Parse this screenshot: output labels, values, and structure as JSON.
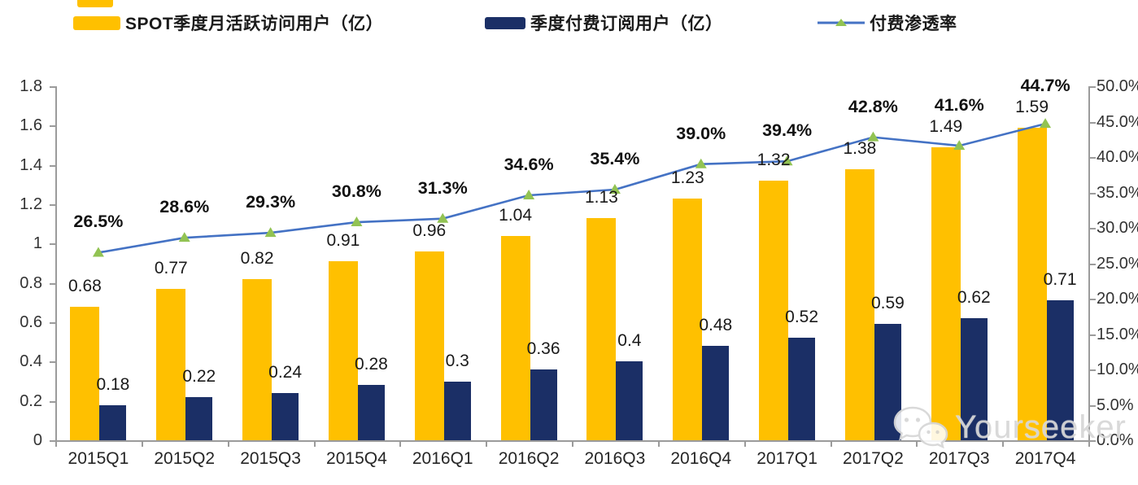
{
  "legend": {
    "items": [
      {
        "label": "SPOT季度月活跃访问用户（亿）",
        "color": "#FFC000",
        "swatch_type": "bar"
      },
      {
        "label": "季度付费订阅用户（亿）",
        "color": "#1B2F66",
        "swatch_type": "bar"
      },
      {
        "label": "付费渗透率",
        "color": "#4472C4",
        "marker_color": "#92C353",
        "swatch_type": "line-triangle"
      }
    ]
  },
  "chart_data": {
    "type": "combo-bar-line",
    "categories": [
      "2015Q1",
      "2015Q2",
      "2015Q3",
      "2015Q4",
      "2016Q1",
      "2016Q2",
      "2016Q3",
      "2016Q4",
      "2017Q1",
      "2017Q2",
      "2017Q3",
      "2017Q4"
    ],
    "series": [
      {
        "name": "SPOT季度月活跃访问用户（亿）",
        "type": "bar",
        "axis": "left",
        "color": "#FFC000",
        "values": [
          0.68,
          0.77,
          0.82,
          0.91,
          0.96,
          1.04,
          1.13,
          1.23,
          1.32,
          1.38,
          1.49,
          1.59
        ],
        "labels": [
          "0.68",
          "0.77",
          "0.82",
          "0.91",
          "0.96",
          "1.04",
          "1.13",
          "1.23",
          "1.32",
          "1.38",
          "1.49",
          "1.59"
        ]
      },
      {
        "name": "季度付费订阅用户（亿）",
        "type": "bar",
        "axis": "left",
        "color": "#1B2F66",
        "values": [
          0.18,
          0.22,
          0.24,
          0.28,
          0.3,
          0.36,
          0.4,
          0.48,
          0.52,
          0.59,
          0.62,
          0.71
        ],
        "labels": [
          "0.18",
          "0.22",
          "0.24",
          "0.28",
          "0.3",
          "0.36",
          "0.4",
          "0.48",
          "0.52",
          "0.59",
          "0.62",
          "0.71"
        ]
      },
      {
        "name": "付费渗透率",
        "type": "line",
        "axis": "right",
        "color": "#4472C4",
        "marker": "triangle",
        "marker_color": "#92C353",
        "values": [
          26.5,
          28.6,
          29.3,
          30.8,
          31.3,
          34.6,
          35.4,
          39.0,
          39.4,
          42.8,
          41.6,
          44.7
        ],
        "labels": [
          "26.5%",
          "28.6%",
          "29.3%",
          "30.8%",
          "31.3%",
          "34.6%",
          "35.4%",
          "39.0%",
          "39.4%",
          "42.8%",
          "41.6%",
          "44.7%"
        ]
      }
    ],
    "left_axis": {
      "min": 0,
      "max": 1.8,
      "step": 0.2,
      "tick_labels": [
        "1.8",
        "1.6",
        "1.4",
        "1.2",
        "1",
        "0.8",
        "0.6",
        "0.4",
        "0.2",
        "0"
      ]
    },
    "right_axis": {
      "min": 0,
      "max": 50,
      "step": 5,
      "tick_labels": [
        "50.0%",
        "45.0%",
        "40.0%",
        "35.0%",
        "30.0%",
        "25.0%",
        "20.0%",
        "15.0%",
        "10.0%",
        "5.0%",
        "0.0%"
      ]
    },
    "legend_position": "top",
    "grid": false
  },
  "watermark": {
    "text": "Yourseeker",
    "icon": "wechat-icon"
  }
}
